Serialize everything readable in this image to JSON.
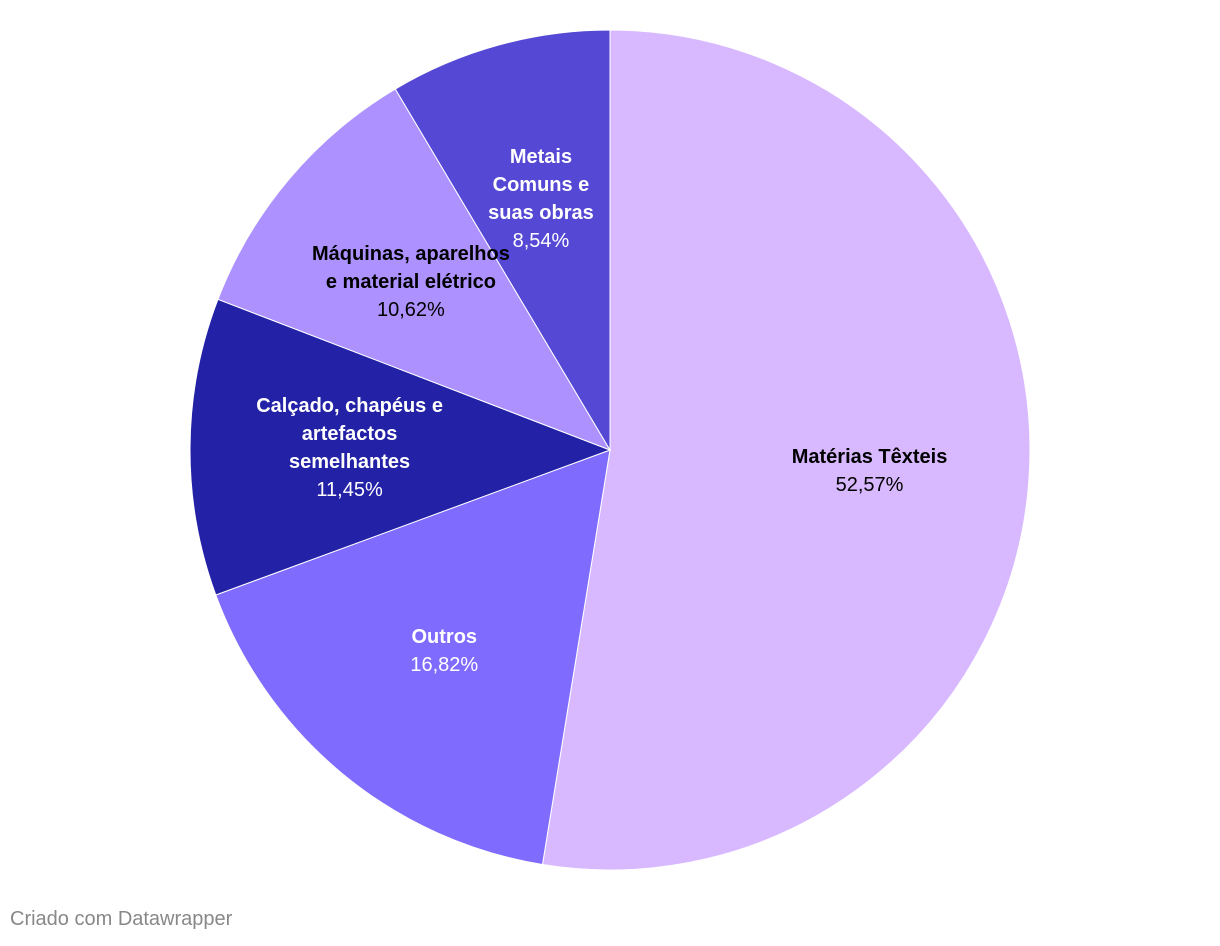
{
  "chart_data": {
    "type": "pie",
    "categories": [
      "Matérias Têxteis",
      "Outros",
      "Calçado, chapéus e artefactos semelhantes",
      "Máquinas, aparelhos e material elétrico",
      "Metais Comuns e suas obras"
    ],
    "values": [
      52.57,
      16.82,
      11.45,
      10.62,
      8.54
    ],
    "value_labels": [
      "52,57%",
      "16,82%",
      "11,45%",
      "10,62%",
      "8,54%"
    ],
    "colors": [
      "#d8b9ff",
      "#806bff",
      "#2321a6",
      "#ad92ff",
      "#5448d5"
    ],
    "credit": "Criado com Datawrapper"
  }
}
